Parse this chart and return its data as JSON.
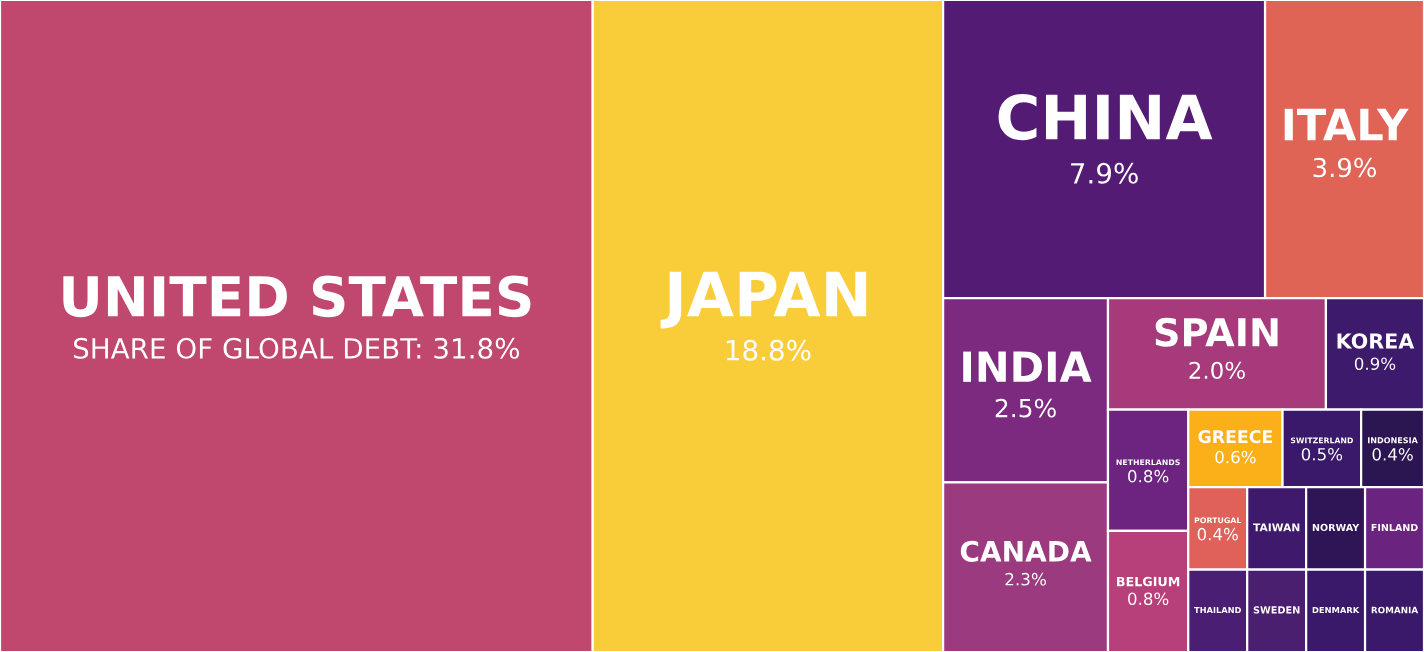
{
  "chart_data": {
    "type": "other",
    "categories": [
      "UNITED STATES",
      "JAPAN",
      "CHINA",
      "ITALY",
      "INDIA",
      "CANADA",
      "SPAIN",
      "KOREA",
      "NETHERLANDS",
      "BELGIUM",
      "GREECE",
      "SWITZERLAND",
      "INDONESIA",
      "PORTUGAL",
      "THAILAND",
      "TAIWAN",
      "SWEDEN",
      "NORWAY",
      "FINLAND",
      "DENMARK",
      "ROMANIA"
    ],
    "values": [
      31.8,
      18.8,
      7.9,
      3.9,
      2.5,
      2.3,
      2.0,
      0.9,
      0.8,
      0.8,
      0.6,
      0.5,
      0.4,
      0.4,
      null,
      null,
      null,
      null,
      null,
      null,
      null
    ],
    "value_labels": [
      "SHARE OF GLOBAL DEBT: 31.8%",
      "18.8%",
      "7.9%",
      "3.9%",
      "2.5%",
      "2.3%",
      "2.0%",
      "0.9%",
      "0.8%",
      "0.8%",
      "0.6%",
      "0.5%",
      "0.4%",
      "0.4%",
      null,
      null,
      null,
      null,
      null,
      null,
      null
    ],
    "colors": [
      "#c0476d",
      "#f9cd3a",
      "#541b74",
      "#e06455",
      "#7b2a80",
      "#9b3a7e",
      "#a63a7a",
      "#3d1a6b",
      "#6c2480",
      "#b8407a",
      "#fbb01a",
      "#3a186a",
      "#2b1652",
      "#e0605a",
      "#4a1f73",
      "#3f1a6c",
      "#4a1f70",
      "#2f1456",
      "#6a2480",
      "#3a186a",
      "#3a186a"
    ]
  }
}
